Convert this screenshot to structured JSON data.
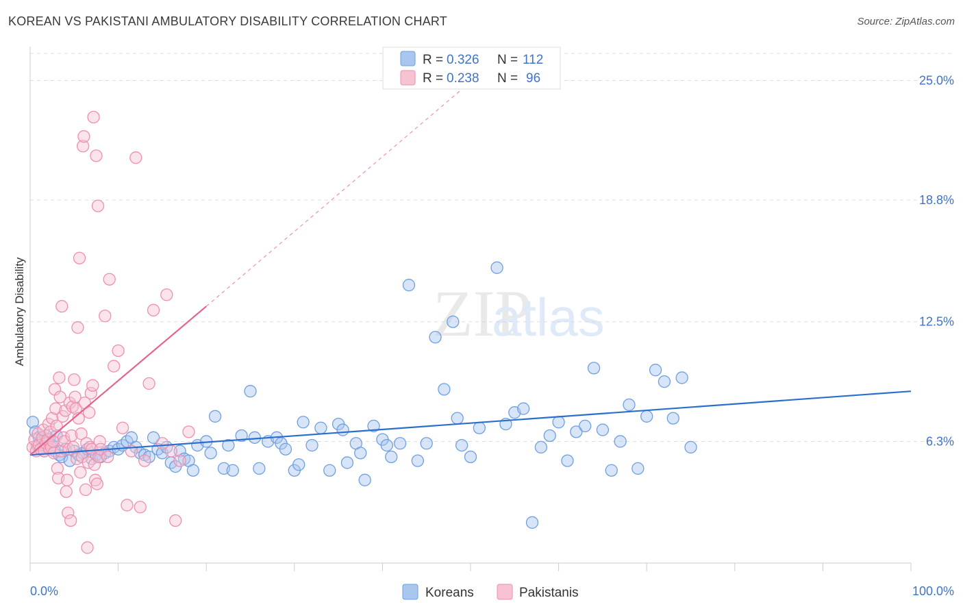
{
  "header": {
    "title": "KOREAN VS PAKISTANI AMBULATORY DISABILITY CORRELATION CHART",
    "source": "Source: ZipAtlas.com"
  },
  "watermark": {
    "zip": "ZIP",
    "atlas": "atlas"
  },
  "legend_top": {
    "rows": [
      {
        "r_label": "R =",
        "r_value": "0.326",
        "n_label": "N =",
        "n_value": "112",
        "color": "#a9c6ef"
      },
      {
        "r_label": "R =",
        "r_value": "0.238",
        "n_label": "N =",
        "n_value": "96",
        "color": "#f5b9cb"
      }
    ]
  },
  "legend_bottom": {
    "items": [
      "Koreans",
      "Pakistanis"
    ]
  },
  "colors": {
    "koreans_fill": "#a9c6ef",
    "koreans_stroke": "#6e9fdf",
    "koreans_line": "#2a6fce",
    "pakistanis_fill": "#f7c3d3",
    "pakistanis_stroke": "#ee8fae",
    "pakistanis_line": "#e3648c",
    "value_text": "#3f73c8",
    "grid": "#dddddd"
  },
  "chart_data": {
    "type": "scatter",
    "title": "KOREAN VS PAKISTANI AMBULATORY DISABILITY CORRELATION CHART",
    "xlabel": "",
    "ylabel": "Ambulatory Disability",
    "xlim": [
      0,
      100
    ],
    "ylim": [
      0,
      26.4
    ],
    "x_tick_labels": [
      "0.0%",
      "100.0%"
    ],
    "y_ticks": [
      6.3,
      12.5,
      18.8,
      25.0
    ],
    "y_tick_labels": [
      "6.3%",
      "12.5%",
      "18.8%",
      "25.0%"
    ],
    "grid": "horizontal dashed",
    "legend": "top-center",
    "series": [
      {
        "name": "Koreans",
        "r": 0.326,
        "n": 112,
        "trend": {
          "x": [
            0,
            100
          ],
          "y": [
            5.6,
            8.9
          ]
        },
        "points": [
          [
            0.3,
            7.3
          ],
          [
            0.6,
            6.8
          ],
          [
            0.8,
            6.1
          ],
          [
            1.0,
            6.5
          ],
          [
            1.2,
            5.9
          ],
          [
            1.4,
            6.3
          ],
          [
            1.6,
            5.8
          ],
          [
            1.8,
            6.6
          ],
          [
            2.0,
            6.0
          ],
          [
            2.2,
            6.4
          ],
          [
            2.5,
            6.1
          ],
          [
            2.8,
            5.8
          ],
          [
            3.0,
            6.6
          ],
          [
            3.3,
            5.6
          ],
          [
            3.6,
            5.5
          ],
          [
            4.0,
            5.9
          ],
          [
            4.5,
            5.3
          ],
          [
            5.0,
            5.8
          ],
          [
            5.5,
            5.6
          ],
          [
            6.0,
            5.7
          ],
          [
            6.5,
            5.9
          ],
          [
            7.0,
            5.4
          ],
          [
            7.5,
            5.6
          ],
          [
            8.0,
            5.5
          ],
          [
            8.5,
            5.7
          ],
          [
            9.0,
            5.8
          ],
          [
            9.5,
            6.0
          ],
          [
            10.0,
            5.9
          ],
          [
            10.5,
            6.1
          ],
          [
            11.0,
            6.3
          ],
          [
            11.5,
            6.5
          ],
          [
            12.0,
            6.0
          ],
          [
            12.5,
            5.7
          ],
          [
            13.0,
            5.6
          ],
          [
            13.5,
            5.5
          ],
          [
            14.0,
            6.5
          ],
          [
            14.5,
            5.9
          ],
          [
            15.0,
            5.7
          ],
          [
            15.5,
            6.0
          ],
          [
            16.0,
            5.2
          ],
          [
            16.5,
            5.0
          ],
          [
            17.0,
            5.8
          ],
          [
            17.5,
            5.4
          ],
          [
            18.0,
            5.3
          ],
          [
            18.5,
            4.8
          ],
          [
            19.0,
            6.1
          ],
          [
            20.0,
            6.3
          ],
          [
            20.5,
            5.7
          ],
          [
            21.0,
            7.6
          ],
          [
            22.0,
            4.9
          ],
          [
            22.5,
            6.1
          ],
          [
            23.0,
            4.8
          ],
          [
            24.0,
            6.6
          ],
          [
            25.0,
            8.9
          ],
          [
            25.5,
            6.5
          ],
          [
            26.0,
            4.9
          ],
          [
            27.0,
            6.3
          ],
          [
            28.0,
            6.5
          ],
          [
            28.5,
            6.2
          ],
          [
            29.0,
            5.9
          ],
          [
            30.0,
            4.8
          ],
          [
            30.5,
            5.1
          ],
          [
            31.0,
            7.3
          ],
          [
            32.0,
            6.1
          ],
          [
            33.0,
            7.0
          ],
          [
            34.0,
            4.8
          ],
          [
            35.0,
            7.2
          ],
          [
            35.5,
            6.9
          ],
          [
            36.0,
            5.2
          ],
          [
            37.0,
            6.2
          ],
          [
            37.5,
            5.7
          ],
          [
            38.0,
            4.3
          ],
          [
            39.0,
            7.1
          ],
          [
            40.0,
            6.4
          ],
          [
            40.5,
            6.1
          ],
          [
            41.0,
            5.5
          ],
          [
            42.0,
            6.2
          ],
          [
            43.0,
            14.4
          ],
          [
            44.0,
            5.3
          ],
          [
            45.0,
            6.2
          ],
          [
            46.0,
            11.7
          ],
          [
            47.0,
            9.0
          ],
          [
            48.0,
            12.5
          ],
          [
            48.5,
            7.5
          ],
          [
            49.0,
            6.1
          ],
          [
            50.0,
            5.5
          ],
          [
            51.0,
            7.0
          ],
          [
            53.0,
            15.3
          ],
          [
            54.0,
            7.2
          ],
          [
            55.0,
            7.8
          ],
          [
            56.0,
            8.0
          ],
          [
            57.0,
            2.1
          ],
          [
            58.0,
            6.0
          ],
          [
            59.0,
            6.6
          ],
          [
            60.0,
            7.3
          ],
          [
            61.0,
            5.3
          ],
          [
            62.0,
            6.8
          ],
          [
            63.0,
            7.1
          ],
          [
            64.0,
            10.1
          ],
          [
            65.0,
            6.9
          ],
          [
            66.0,
            4.8
          ],
          [
            67.0,
            6.3
          ],
          [
            68.0,
            8.2
          ],
          [
            69.0,
            4.9
          ],
          [
            70.0,
            7.6
          ],
          [
            71.0,
            10.0
          ],
          [
            72.0,
            9.4
          ],
          [
            73.0,
            7.5
          ],
          [
            74.0,
            9.6
          ],
          [
            75.0,
            6.0
          ]
        ]
      },
      {
        "name": "Pakistanis",
        "r": 0.238,
        "n": 96,
        "trend": {
          "x": [
            0,
            20
          ],
          "y": [
            5.6,
            13.3
          ]
        },
        "trend_extension": {
          "x": [
            20,
            52
          ],
          "y": [
            13.3,
            25.7
          ]
        },
        "points": [
          [
            0.3,
            6.0
          ],
          [
            0.5,
            6.4
          ],
          [
            0.7,
            5.8
          ],
          [
            0.9,
            6.7
          ],
          [
            1.0,
            6.1
          ],
          [
            1.2,
            5.9
          ],
          [
            1.4,
            6.5
          ],
          [
            1.5,
            6.9
          ],
          [
            1.6,
            5.8
          ],
          [
            1.8,
            6.2
          ],
          [
            2.0,
            6.4
          ],
          [
            2.1,
            7.2
          ],
          [
            2.2,
            5.9
          ],
          [
            2.3,
            6.8
          ],
          [
            2.4,
            6.0
          ],
          [
            2.5,
            7.5
          ],
          [
            2.6,
            6.3
          ],
          [
            2.7,
            5.7
          ],
          [
            2.8,
            9.0
          ],
          [
            2.9,
            8.0
          ],
          [
            3.0,
            7.1
          ],
          [
            3.1,
            4.9
          ],
          [
            3.2,
            4.4
          ],
          [
            3.3,
            9.6
          ],
          [
            3.4,
            8.6
          ],
          [
            3.5,
            5.8
          ],
          [
            3.6,
            13.3
          ],
          [
            3.7,
            7.6
          ],
          [
            3.8,
            6.5
          ],
          [
            3.9,
            6.3
          ],
          [
            4.0,
            7.9
          ],
          [
            4.1,
            3.7
          ],
          [
            4.2,
            4.3
          ],
          [
            4.3,
            2.6
          ],
          [
            4.4,
            5.9
          ],
          [
            4.5,
            8.3
          ],
          [
            4.6,
            2.2
          ],
          [
            4.7,
            6.6
          ],
          [
            4.8,
            8.1
          ],
          [
            4.9,
            6.0
          ],
          [
            5.0,
            9.5
          ],
          [
            5.1,
            8.6
          ],
          [
            5.2,
            8.0
          ],
          [
            5.3,
            5.4
          ],
          [
            5.4,
            12.2
          ],
          [
            5.5,
            7.5
          ],
          [
            5.6,
            15.8
          ],
          [
            5.7,
            4.7
          ],
          [
            5.8,
            6.7
          ],
          [
            5.9,
            5.5
          ],
          [
            6.0,
            21.6
          ],
          [
            6.1,
            22.1
          ],
          [
            6.2,
            8.3
          ],
          [
            6.3,
            3.8
          ],
          [
            6.4,
            6.2
          ],
          [
            6.5,
            0.8
          ],
          [
            6.6,
            5.2
          ],
          [
            6.7,
            7.8
          ],
          [
            6.8,
            6.0
          ],
          [
            6.9,
            8.8
          ],
          [
            7.0,
            5.9
          ],
          [
            7.1,
            9.2
          ],
          [
            7.2,
            23.1
          ],
          [
            7.3,
            5.1
          ],
          [
            7.4,
            4.3
          ],
          [
            7.5,
            21.1
          ],
          [
            7.6,
            4.1
          ],
          [
            7.7,
            18.5
          ],
          [
            7.8,
            5.5
          ],
          [
            7.9,
            6.3
          ],
          [
            8.0,
            5.9
          ],
          [
            8.5,
            12.8
          ],
          [
            8.8,
            5.5
          ],
          [
            9.0,
            14.7
          ],
          [
            9.5,
            10.2
          ],
          [
            10.0,
            11.0
          ],
          [
            10.5,
            7.0
          ],
          [
            11.0,
            3.0
          ],
          [
            11.5,
            5.8
          ],
          [
            12.0,
            21.0
          ],
          [
            12.5,
            2.9
          ],
          [
            13.0,
            5.3
          ],
          [
            13.5,
            9.3
          ],
          [
            14.0,
            13.1
          ],
          [
            15.0,
            6.2
          ],
          [
            15.5,
            13.9
          ],
          [
            16.0,
            5.8
          ],
          [
            16.5,
            2.2
          ],
          [
            17.0,
            5.3
          ],
          [
            18.0,
            6.8
          ]
        ]
      }
    ]
  }
}
